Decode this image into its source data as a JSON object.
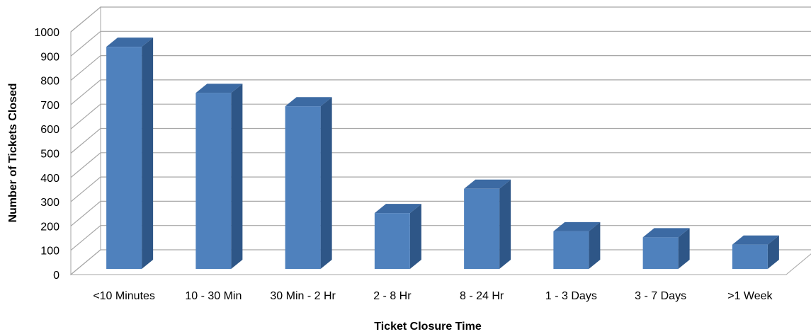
{
  "chart_data": {
    "type": "bar",
    "title": "",
    "xlabel": "Ticket Closure Time",
    "ylabel": "Number of Tickets Closed",
    "categories": [
      "<10 Minutes",
      "10 - 30 Min",
      "30 Min - 2 Hr",
      "2 - 8 Hr",
      "8 - 24 Hr",
      "1 - 3 Days",
      "3 - 7 Days",
      ">1 Week"
    ],
    "values": [
      915,
      725,
      670,
      230,
      330,
      155,
      130,
      100
    ],
    "ylim": [
      0,
      1000
    ],
    "yticks": [
      "0",
      "100",
      "200",
      "300",
      "400",
      "500",
      "600",
      "700",
      "800",
      "900",
      "1000"
    ],
    "grid": true,
    "style": "3d",
    "legend": "none",
    "colors": {
      "bar_front": "#4F81BD",
      "bar_side": "#2E5687",
      "bar_top": "#3C6AA3",
      "gridline": "#A6A6A6",
      "wall": "#FFFFFF"
    }
  }
}
